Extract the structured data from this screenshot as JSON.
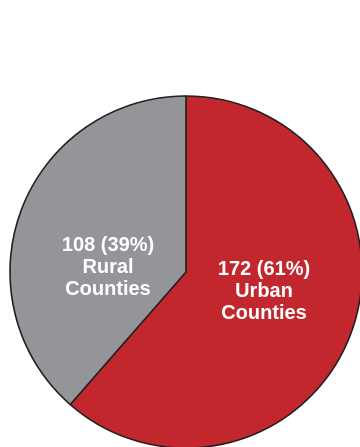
{
  "chart_data": {
    "type": "pie",
    "title": "",
    "slices": [
      {
        "value": 172,
        "percent": "61%",
        "lines": [
          "172 (61%)",
          "Urban",
          "Counties"
        ],
        "color": "#c1272d"
      },
      {
        "value": 108,
        "percent": "39%",
        "lines": [
          "108 (39%)",
          "Rural",
          "Counties"
        ],
        "color": "#939598"
      }
    ]
  }
}
